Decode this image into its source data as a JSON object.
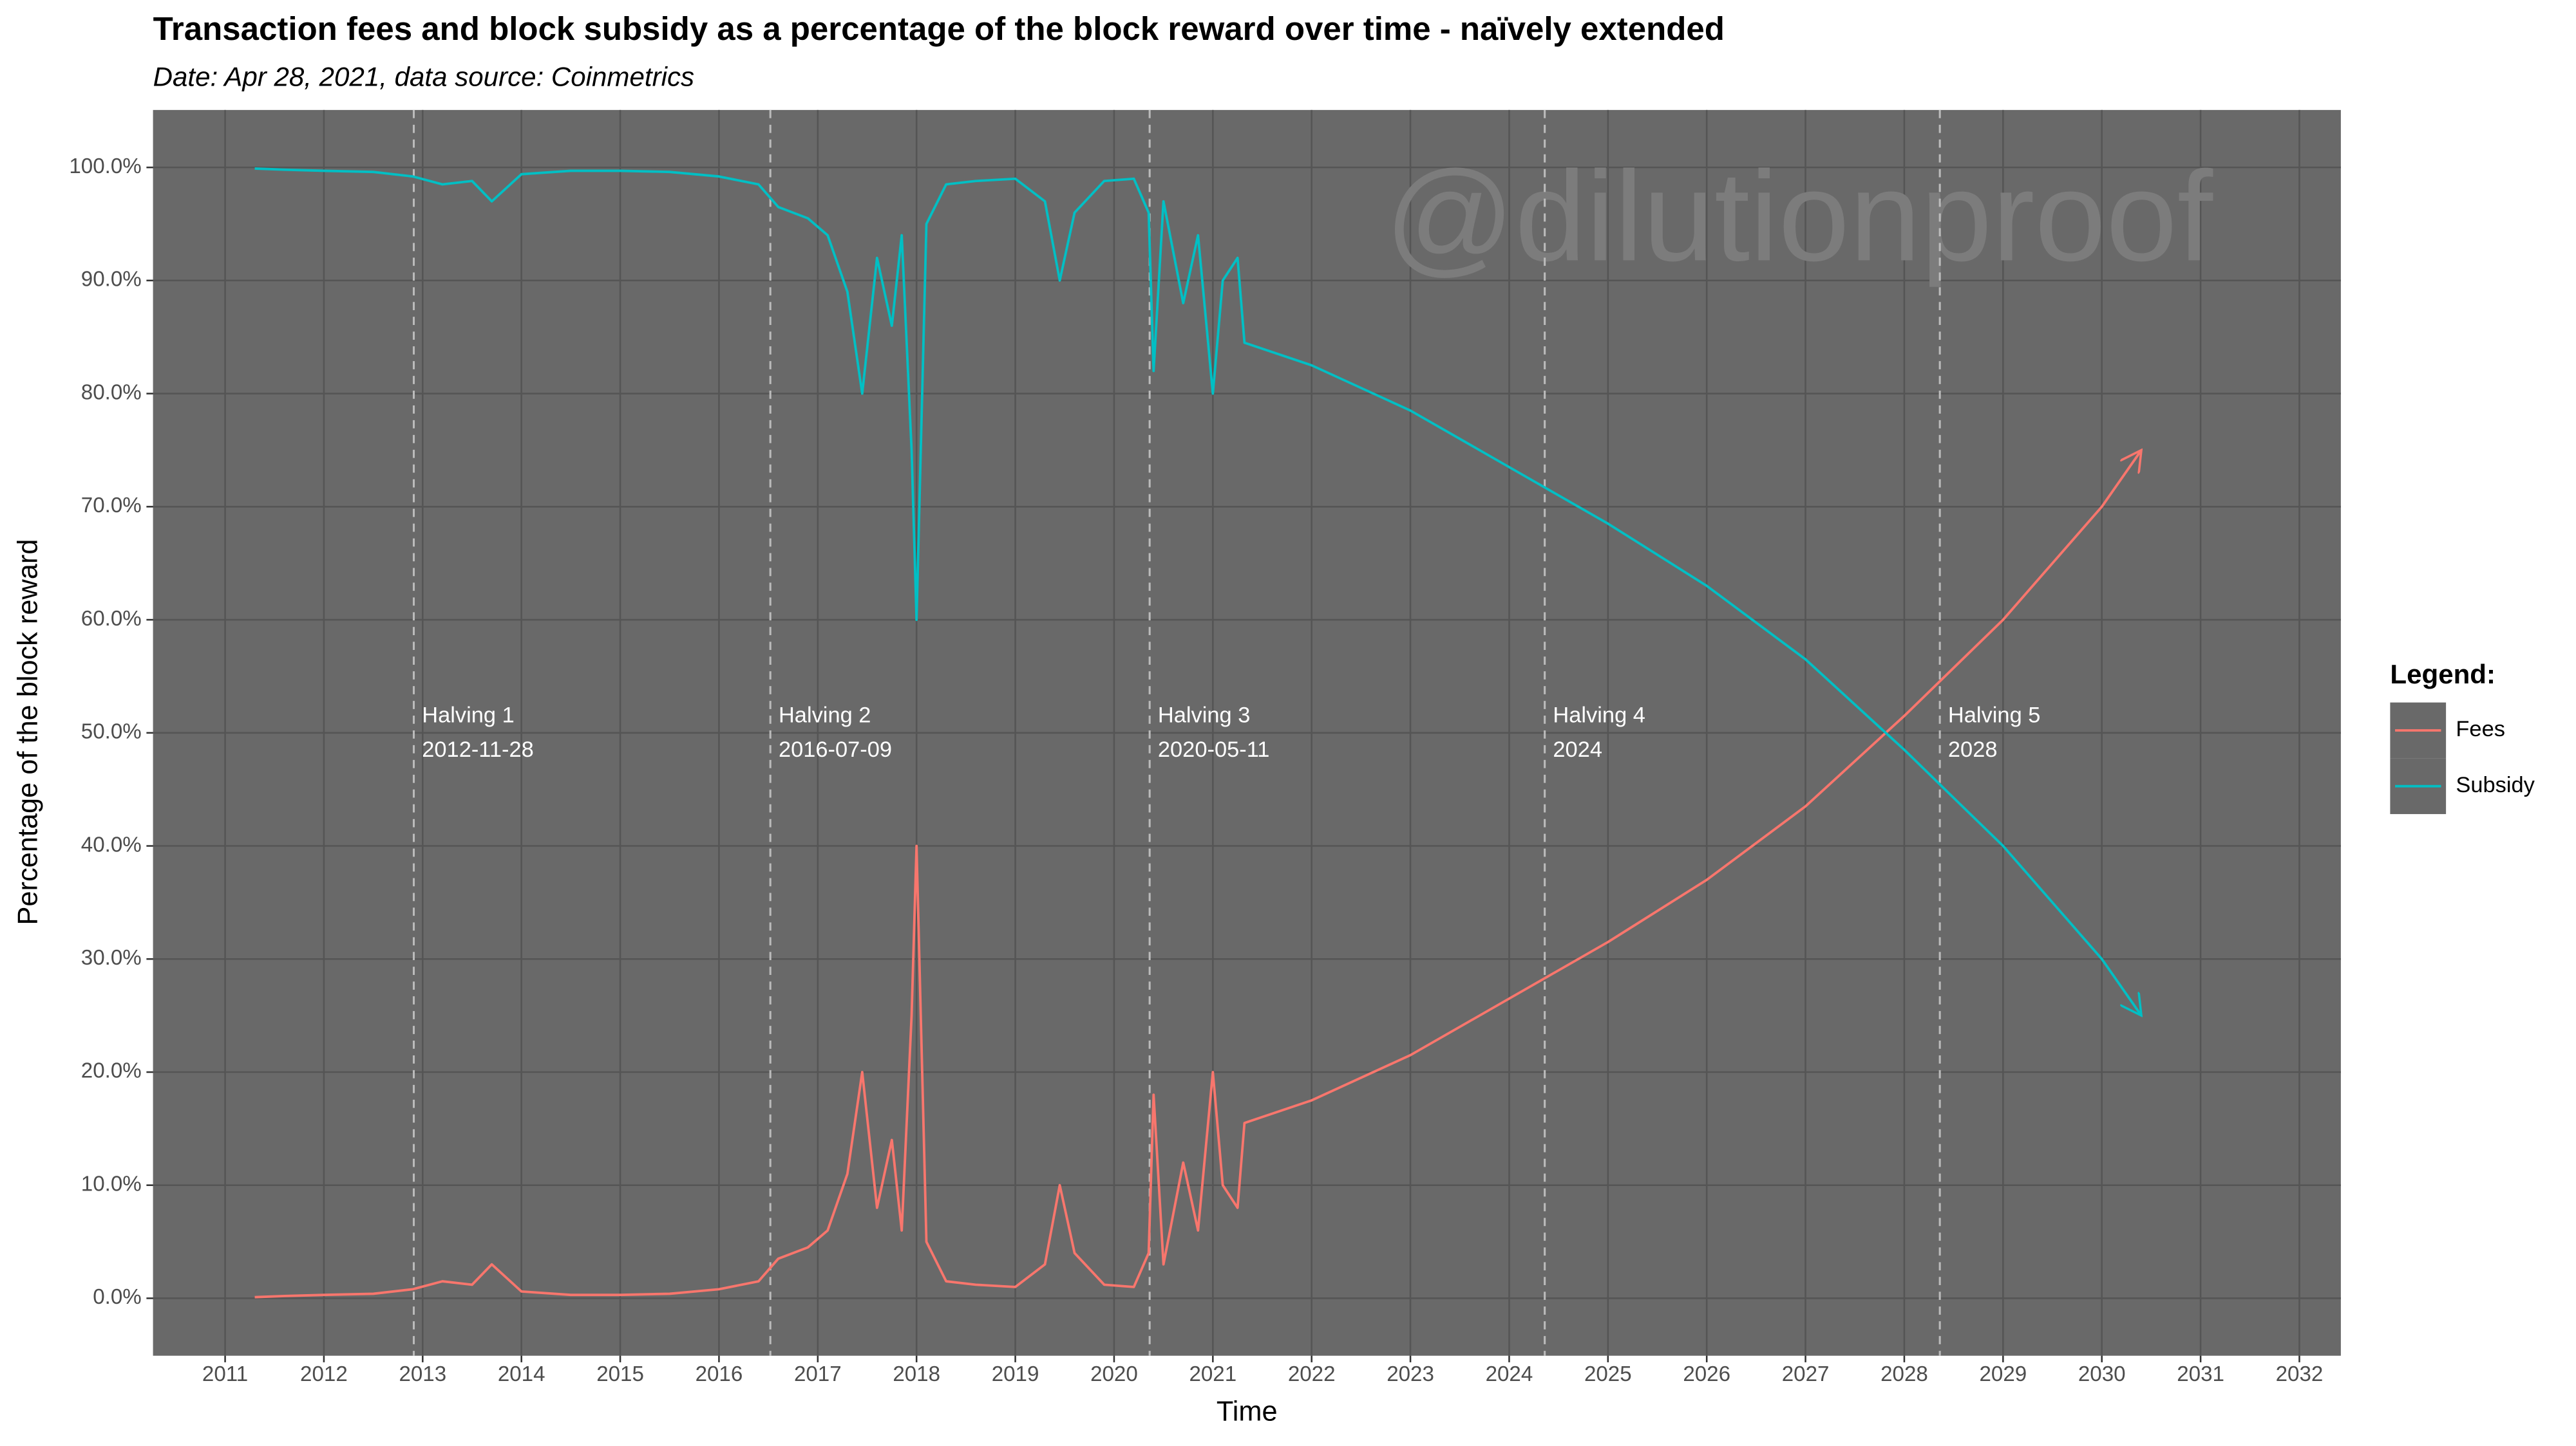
{
  "chart_data": {
    "type": "line",
    "title": "Transaction fees and block subsidy as a percentage of the block reward over time - naïvely extended",
    "subtitle": "Date: Apr 28, 2021, data source: Coinmetrics",
    "watermark": "@dilutionproof",
    "x_label": "Time",
    "y_label": "Percentage of the block reward",
    "legend_title": "Legend:",
    "legend_position": "right",
    "grid": true,
    "xlim": [
      2010.27,
      2032.42
    ],
    "ylim": [
      -5.08,
      105.08
    ],
    "xticks": [
      2011,
      2012,
      2013,
      2014,
      2015,
      2016,
      2017,
      2018,
      2019,
      2020,
      2021,
      2022,
      2023,
      2024,
      2025,
      2026,
      2027,
      2028,
      2029,
      2030,
      2031,
      2032
    ],
    "yticks": [
      {
        "value": 0,
        "label": "0.0%"
      },
      {
        "value": 10,
        "label": "10.0%"
      },
      {
        "value": 20,
        "label": "20.0%"
      },
      {
        "value": 30,
        "label": "30.0%"
      },
      {
        "value": 40,
        "label": "40.0%"
      },
      {
        "value": 50,
        "label": "50.0%"
      },
      {
        "value": 60,
        "label": "60.0%"
      },
      {
        "value": 70,
        "label": "70.0%"
      },
      {
        "value": 80,
        "label": "80.0%"
      },
      {
        "value": 90,
        "label": "90.0%"
      },
      {
        "value": 100,
        "label": "100.0%"
      }
    ],
    "x": [
      2011.3,
      2011.6,
      2012.0,
      2012.5,
      2012.9,
      2013.2,
      2013.5,
      2013.7,
      2014.0,
      2014.5,
      2015.0,
      2015.5,
      2016.0,
      2016.4,
      2016.6,
      2016.9,
      2017.1,
      2017.3,
      2017.45,
      2017.6,
      2017.75,
      2017.85,
      2017.95,
      2018.0,
      2018.1,
      2018.3,
      2018.6,
      2019.0,
      2019.3,
      2019.45,
      2019.6,
      2019.9,
      2020.2,
      2020.35,
      2020.4,
      2020.5,
      2020.7,
      2020.85,
      2021.0,
      2021.1,
      2021.25,
      2021.32,
      2022,
      2023,
      2024,
      2025,
      2026,
      2027,
      2028,
      2029,
      2030,
      2030.4
    ],
    "series": [
      {
        "name": "Fees",
        "color": "#F8766D",
        "values": [
          0.1,
          0.2,
          0.3,
          0.4,
          0.8,
          1.5,
          1.2,
          3.0,
          0.6,
          0.3,
          0.3,
          0.4,
          0.8,
          1.5,
          3.5,
          4.5,
          6,
          11,
          20,
          8,
          14,
          6,
          25,
          40,
          5,
          1.5,
          1.2,
          1.0,
          3,
          10,
          4,
          1.2,
          1.0,
          4,
          18,
          3,
          12,
          6,
          20,
          10,
          8,
          15.5,
          17.5,
          21.5,
          26.5,
          31.5,
          37,
          43.5,
          51.5,
          60,
          70,
          75
        ]
      },
      {
        "name": "Subsidy",
        "color": "#00BFC4",
        "values": [
          99.9,
          99.8,
          99.7,
          99.6,
          99.2,
          98.5,
          98.8,
          97.0,
          99.4,
          99.7,
          99.7,
          99.6,
          99.2,
          98.5,
          96.5,
          95.5,
          94,
          89,
          80,
          92,
          86,
          94,
          75,
          60,
          95,
          98.5,
          98.8,
          99.0,
          97,
          90,
          96,
          98.8,
          99.0,
          96,
          82,
          97,
          88,
          94,
          80,
          90,
          92,
          84.5,
          82.5,
          78.5,
          73.5,
          68.5,
          63,
          56.5,
          48.5,
          40,
          30,
          25
        ]
      }
    ],
    "annotations": [
      {
        "x": 2012.91,
        "label": "Halving 1",
        "date": "2012-11-28"
      },
      {
        "x": 2016.52,
        "label": "Halving 2",
        "date": "2016-07-09"
      },
      {
        "x": 2020.36,
        "label": "Halving 3",
        "date": "2020-05-11"
      },
      {
        "x": 2024.36,
        "label": "Halving 4",
        "date": "2024"
      },
      {
        "x": 2028.36,
        "label": "Halving 5",
        "date": "2028"
      }
    ]
  }
}
